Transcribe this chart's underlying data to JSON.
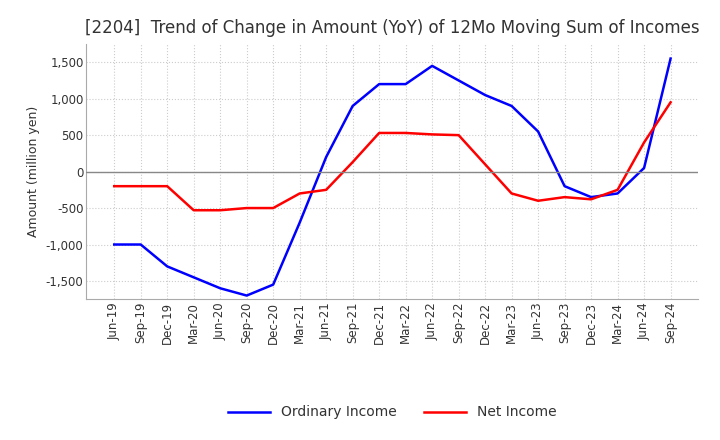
{
  "title": "[2204]  Trend of Change in Amount (YoY) of 12Mo Moving Sum of Incomes",
  "ylabel": "Amount (million yen)",
  "xlabels": [
    "Jun-19",
    "Sep-19",
    "Dec-19",
    "Mar-20",
    "Jun-20",
    "Sep-20",
    "Dec-20",
    "Mar-21",
    "Jun-21",
    "Sep-21",
    "Dec-21",
    "Mar-22",
    "Jun-22",
    "Sep-22",
    "Dec-22",
    "Mar-23",
    "Jun-23",
    "Sep-23",
    "Dec-23",
    "Mar-24",
    "Jun-24",
    "Sep-24"
  ],
  "ordinary_income": [
    -1000,
    -1000,
    -1300,
    -1450,
    -1600,
    -1700,
    -1550,
    -700,
    200,
    900,
    1200,
    1200,
    1450,
    1250,
    1050,
    900,
    550,
    -200,
    -350,
    -300,
    50,
    1550
  ],
  "net_income": [
    -200,
    -200,
    -200,
    -530,
    -530,
    -500,
    -500,
    -300,
    -250,
    130,
    530,
    530,
    510,
    500,
    100,
    -300,
    -400,
    -350,
    -380,
    -250,
    400,
    950
  ],
  "ordinary_color": "#0000ff",
  "net_color": "#ff0000",
  "ylim": [
    -1750,
    1750
  ],
  "yticks": [
    -1500,
    -1000,
    -500,
    0,
    500,
    1000,
    1500
  ],
  "background_color": "#ffffff",
  "grid_color": "#cccccc",
  "title_color": "#333333",
  "title_fontsize": 12,
  "legend_fontsize": 10,
  "axis_fontsize": 8.5,
  "ylabel_fontsize": 9
}
